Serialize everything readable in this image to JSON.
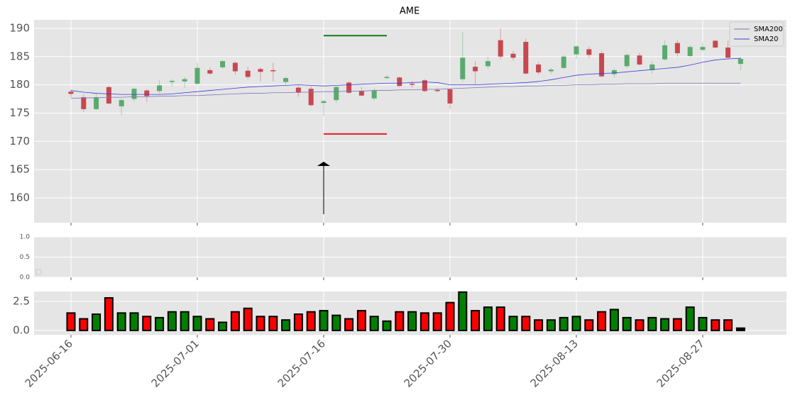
{
  "chart_data": [
    {
      "type": "candlestick",
      "title": "AME",
      "open": [
        178.8,
        177.8,
        175.7,
        179.6,
        176.2,
        177.5,
        179.0,
        178.9,
        180.5,
        180.6,
        180.2,
        182.6,
        183.1,
        183.9,
        182.5,
        182.8,
        182.6,
        180.5,
        179.5,
        179.3,
        176.8,
        177.3,
        180.4,
        178.9,
        177.6,
        181.2,
        181.3,
        180.2,
        180.8,
        179.1,
        179.2,
        181.0,
        183.2,
        183.3,
        187.9,
        185.5,
        187.6,
        183.6,
        182.4,
        183.0,
        185.4,
        186.3,
        185.6,
        181.9,
        183.3,
        185.2,
        182.6,
        184.5,
        187.4,
        185.1,
        186.2,
        187.8,
        186.6,
        183.7
      ],
      "high": [
        179.2,
        178.3,
        178.5,
        179.8,
        177.6,
        179.6,
        179.2,
        180.8,
        181.0,
        181.4,
        183.9,
        183.1,
        184.3,
        184.1,
        183.2,
        183.1,
        183.9,
        181.5,
        179.8,
        179.7,
        177.4,
        179.8,
        180.6,
        179.6,
        179.4,
        181.7,
        181.5,
        180.7,
        181.0,
        179.5,
        179.4,
        189.3,
        184.2,
        185.0,
        190.0,
        186.0,
        188.2,
        184.0,
        183.0,
        185.3,
        187.0,
        186.8,
        186.0,
        182.9,
        185.5,
        185.7,
        184.2,
        187.9,
        187.9,
        187.0,
        187.4,
        188.0,
        187.8,
        184.9
      ],
      "low": [
        177.8,
        175.2,
        175.5,
        176.5,
        174.6,
        177.0,
        177.0,
        178.5,
        179.8,
        179.5,
        180.0,
        181.8,
        182.8,
        181.8,
        181.0,
        180.6,
        180.6,
        180.0,
        177.9,
        176.2,
        174.5,
        176.8,
        178.4,
        178.0,
        177.2,
        181.0,
        179.6,
        179.5,
        178.7,
        178.7,
        175.7,
        180.5,
        180.0,
        182.8,
        184.5,
        184.3,
        181.8,
        181.8,
        182.0,
        182.8,
        184.6,
        184.8,
        181.3,
        181.3,
        183.0,
        183.4,
        182.0,
        184.3,
        185.0,
        184.9,
        185.9,
        186.5,
        184.5,
        182.6
      ],
      "close": [
        178.4,
        175.7,
        177.8,
        176.7,
        177.3,
        179.3,
        178.0,
        179.9,
        180.7,
        181.0,
        183.0,
        182.0,
        184.2,
        182.4,
        181.4,
        182.3,
        182.4,
        181.2,
        178.6,
        176.4,
        177.1,
        179.6,
        178.6,
        178.1,
        179.0,
        181.4,
        179.8,
        180.0,
        178.9,
        178.9,
        176.7,
        184.8,
        182.4,
        184.2,
        185.0,
        184.8,
        182.0,
        182.2,
        182.7,
        185.0,
        186.8,
        185.3,
        181.5,
        182.6,
        185.3,
        183.6,
        183.6,
        187.0,
        185.6,
        186.7,
        186.7,
        186.6,
        184.8,
        184.6
      ],
      "up_color": "#5aaa6e",
      "down_color": "#c8474f",
      "series": [
        {
          "name": "SMA200",
          "color": "#7a78b8",
          "values": [
            177.6,
            177.7,
            177.7,
            177.8,
            177.8,
            177.9,
            177.9,
            178.0,
            178.0,
            178.1,
            178.1,
            178.2,
            178.3,
            178.4,
            178.5,
            178.5,
            178.6,
            178.6,
            178.7,
            178.7,
            178.8,
            178.8,
            178.9,
            178.9,
            179.0,
            179.0,
            179.1,
            179.1,
            179.2,
            179.2,
            179.3,
            179.4,
            179.5,
            179.6,
            179.7,
            179.7,
            179.8,
            179.8,
            179.9,
            179.9,
            180.0,
            180.0,
            180.1,
            180.1,
            180.2,
            180.2,
            180.2,
            180.3,
            180.3,
            180.3,
            180.3,
            180.3,
            180.3,
            180.3
          ]
        },
        {
          "name": "SMA20",
          "color": "#3b3bdc",
          "values": [
            179.0,
            178.7,
            178.5,
            178.4,
            178.3,
            178.3,
            178.3,
            178.3,
            178.4,
            178.6,
            178.8,
            179.0,
            179.2,
            179.4,
            179.6,
            179.7,
            179.8,
            179.9,
            180.0,
            179.9,
            179.8,
            179.9,
            180.0,
            180.1,
            180.2,
            180.3,
            180.3,
            180.4,
            180.5,
            180.4,
            180.0,
            180.0,
            180.0,
            180.1,
            180.2,
            180.3,
            180.4,
            180.6,
            180.9,
            181.3,
            181.7,
            181.9,
            182.0,
            182.1,
            182.3,
            182.5,
            182.7,
            182.9,
            183.1,
            183.5,
            184.0,
            184.4,
            184.6,
            184.7
          ]
        }
      ],
      "hlines": [
        {
          "value": 188.7,
          "color": "#1a7a1a"
        },
        {
          "value": 171.3,
          "color": "#e02020"
        }
      ],
      "arrow": [
        157.1,
        166.4
      ],
      "ylim": [
        155.6,
        191.5
      ],
      "yticks": [
        160,
        165,
        170,
        175,
        180,
        185,
        190
      ],
      "grid": true
    },
    {
      "type": "empty",
      "ylim": [
        0,
        1
      ],
      "yticks": [
        {
          "value": 0,
          "label": "0.0"
        },
        {
          "value": 0.5,
          "label": "0.5"
        },
        {
          "value": 1,
          "label": "1.0"
        }
      ],
      "grid": true
    },
    {
      "type": "bar",
      "categories": [
        "2025-06-16",
        null,
        null,
        null,
        null,
        null,
        null,
        null,
        null,
        null,
        "2025-07-01",
        null,
        null,
        null,
        null,
        null,
        null,
        null,
        null,
        null,
        "2025-07-16",
        null,
        null,
        null,
        null,
        null,
        null,
        null,
        null,
        null,
        "2025-07-30",
        null,
        null,
        null,
        null,
        null,
        null,
        null,
        null,
        null,
        "2025-08-13",
        null,
        null,
        null,
        null,
        null,
        null,
        null,
        null,
        null,
        "2025-08-27",
        null,
        null,
        null
      ],
      "values": [
        1.5,
        1.0,
        1.4,
        2.8,
        1.5,
        1.5,
        1.2,
        1.1,
        1.6,
        1.6,
        1.2,
        1.0,
        0.7,
        1.6,
        1.9,
        1.2,
        1.2,
        0.9,
        1.4,
        1.6,
        1.7,
        1.3,
        1.0,
        1.7,
        1.2,
        0.8,
        1.6,
        1.6,
        1.5,
        1.5,
        2.4,
        3.3,
        1.7,
        2.0,
        2.0,
        1.2,
        1.2,
        0.9,
        0.9,
        1.1,
        1.2,
        0.9,
        1.6,
        1.8,
        1.1,
        0.9,
        1.1,
        1.0,
        1.0,
        2.0,
        1.1,
        0.9,
        0.9,
        0.2
      ],
      "colors": [
        "red",
        "red",
        "green",
        "red",
        "green",
        "green",
        "red",
        "green",
        "green",
        "green",
        "green",
        "red",
        "green",
        "red",
        "red",
        "red",
        "red",
        "green",
        "red",
        "red",
        "green",
        "green",
        "red",
        "red",
        "green",
        "green",
        "red",
        "green",
        "red",
        "red",
        "red",
        "green",
        "red",
        "green",
        "red",
        "green",
        "red",
        "red",
        "green",
        "green",
        "green",
        "red",
        "red",
        "green",
        "green",
        "red",
        "green",
        "green",
        "red",
        "green",
        "green",
        "red",
        "red",
        "black"
      ],
      "ylim": [
        -0.37,
        3.35
      ],
      "yticks": [
        {
          "value": 0,
          "label": "0.0"
        },
        {
          "value": 2.5,
          "label": "2.5"
        }
      ],
      "grid": true
    }
  ]
}
